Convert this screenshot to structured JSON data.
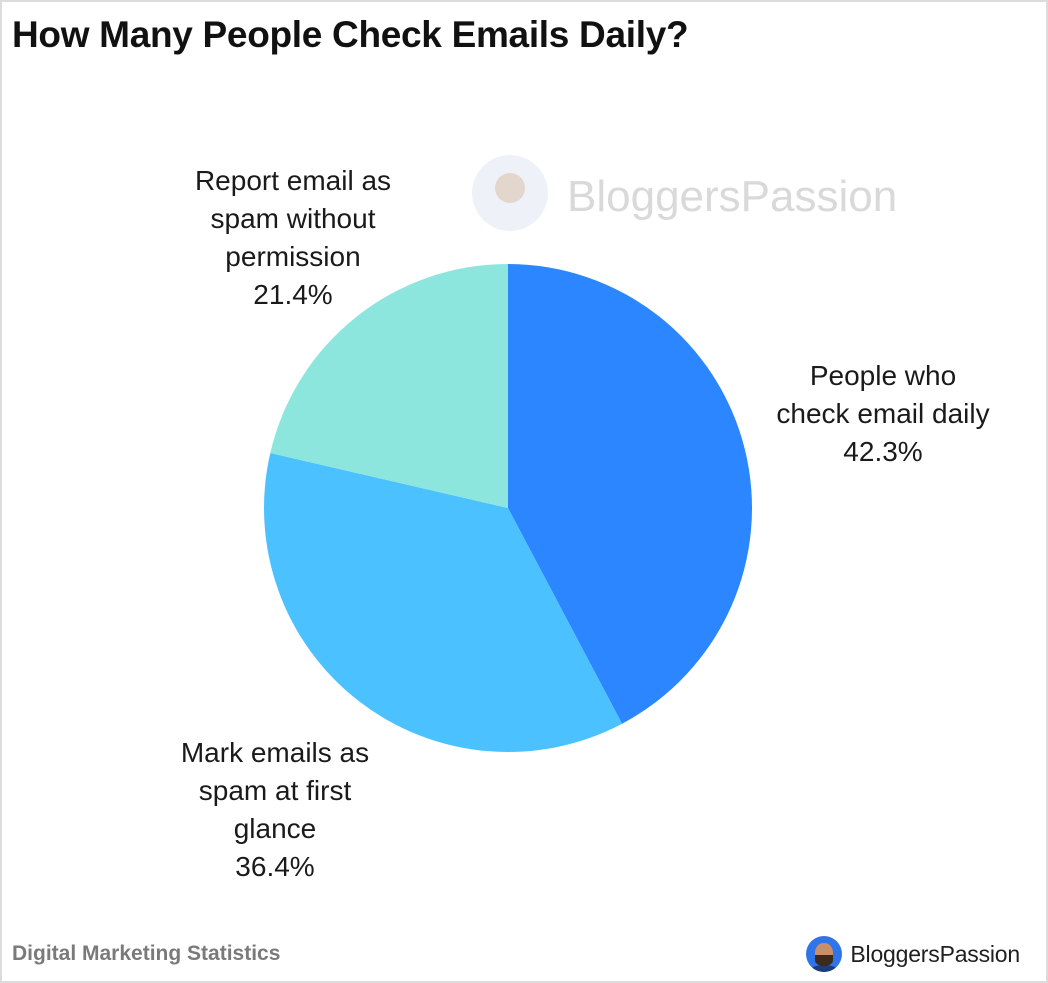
{
  "title": "How Many People Check Emails Daily?",
  "footer": {
    "left": "Digital Marketing Statistics",
    "brand": "BloggersPassion"
  },
  "watermark": {
    "text": "BloggersPassion"
  },
  "chart_data": {
    "type": "pie",
    "title": "How Many People Check Emails Daily?",
    "start_angle_deg": 0,
    "direction": "clockwise",
    "slices": [
      {
        "label_lines": [
          "People who",
          "check email daily"
        ],
        "value": 42.3,
        "value_label": "42.3%",
        "color": "#2b86ff"
      },
      {
        "label_lines": [
          "Mark emails as",
          "spam at first",
          "glance"
        ],
        "value": 36.4,
        "value_label": "36.4%",
        "color": "#4bc2ff"
      },
      {
        "label_lines": [
          "Report email as",
          "spam without",
          "permission"
        ],
        "value": 21.4,
        "value_label": "21.4%",
        "color": "#8de6dd"
      }
    ]
  }
}
